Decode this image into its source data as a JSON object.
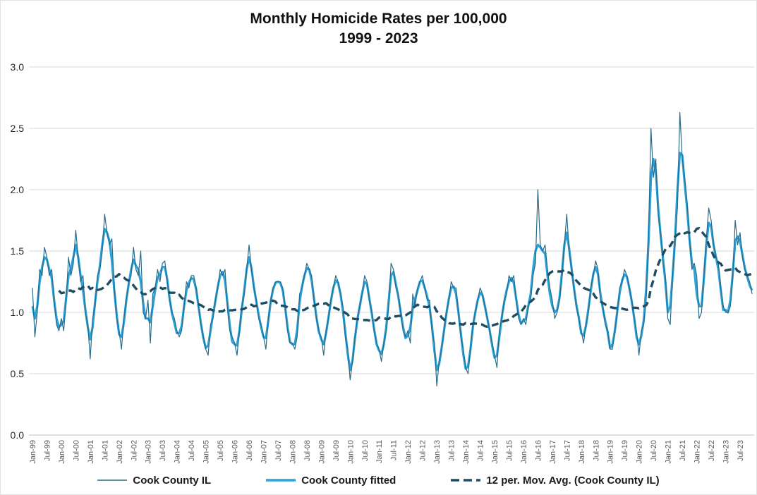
{
  "chart": {
    "title_line1": "Monthly Homicide Rates per 100,000",
    "title_line2": "1999 - 2023"
  },
  "colors": {
    "raw_line": "#2a6a88",
    "fitted_line": "#29a3dc",
    "moving_avg_line": "#1e4d61",
    "gridline": "#d9d9d9",
    "axis_line": "#bfbfbf",
    "y_tick_label": "#262626",
    "x_tick_label": "#595959",
    "title_text": "#111111"
  },
  "chart_data": {
    "type": "line",
    "title": "Monthly Homicide Rates per 100,000",
    "subtitle": "1999 - 2023",
    "xlabel": "",
    "ylabel": "",
    "ylim": [
      0.0,
      3.0
    ],
    "ytick_labels": [
      "0.0",
      "0.5",
      "1.0",
      "1.5",
      "2.0",
      "2.5",
      "3.0"
    ],
    "grid": "horizontal",
    "legend_position": "bottom",
    "x_unit": "month",
    "x_range": "Jan-1999 to Dec-2023",
    "months_total": 300,
    "x_tick_every_months": 6,
    "x_tick_labels": [
      "Jan-99",
      "Jul-99",
      "Jan-00",
      "Jul-00",
      "Jan-01",
      "Jul-01",
      "Jan-02",
      "Jul-02",
      "Jan-03",
      "Jul-03",
      "Jan-04",
      "Jul-04",
      "Jan-05",
      "Jul-05",
      "Jan-06",
      "Jul-06",
      "Jan-07",
      "Jul-07",
      "Jan-08",
      "Jul-08",
      "Jan-09",
      "Jul-09",
      "Jan-10",
      "Jul-10",
      "Jan-11",
      "Jul-11",
      "Jan-12",
      "Jul-12",
      "Jan-13",
      "Jul-13",
      "Jan-14",
      "Jul-14",
      "Jan-15",
      "Jul-15",
      "Jan-16",
      "Jul-16",
      "Jan-17",
      "Jul-17",
      "Jan-18",
      "Jul-18",
      "Jan-19",
      "Jul-19",
      "Jan-20",
      "Jul-20",
      "Jan-21",
      "Jul-21",
      "Jan-22",
      "Jul-22",
      "Jan-23",
      "Jul-23"
    ],
    "series": [
      {
        "name": "Cook County IL",
        "style": "thin-solid",
        "width": 1.2,
        "values": [
          1.2,
          0.8,
          1.0,
          1.35,
          1.3,
          1.53,
          1.45,
          1.3,
          1.35,
          1.1,
          0.9,
          0.85,
          0.95,
          0.85,
          1.1,
          1.45,
          1.3,
          1.4,
          1.67,
          1.45,
          1.25,
          1.3,
          1.0,
          0.9,
          0.62,
          0.95,
          1.05,
          1.3,
          1.35,
          1.5,
          1.8,
          1.65,
          1.55,
          1.6,
          1.2,
          0.95,
          0.85,
          0.7,
          0.95,
          1.1,
          1.25,
          1.3,
          1.53,
          1.35,
          1.3,
          1.5,
          1.0,
          0.95,
          1.1,
          0.75,
          1.15,
          1.2,
          1.35,
          1.25,
          1.4,
          1.42,
          1.25,
          1.1,
          1.0,
          0.95,
          0.85,
          0.8,
          0.85,
          1.05,
          1.25,
          1.2,
          1.3,
          1.3,
          1.2,
          1.05,
          0.9,
          0.8,
          0.7,
          0.65,
          0.9,
          0.95,
          1.1,
          1.2,
          1.35,
          1.3,
          1.35,
          1.05,
          0.85,
          0.8,
          0.75,
          0.65,
          0.85,
          1.05,
          1.15,
          1.35,
          1.55,
          1.35,
          1.2,
          1.1,
          0.95,
          0.9,
          0.8,
          0.7,
          0.95,
          1.1,
          1.2,
          1.25,
          1.25,
          1.25,
          1.2,
          1.05,
          0.85,
          0.75,
          0.75,
          0.7,
          0.8,
          1.15,
          1.2,
          1.3,
          1.4,
          1.35,
          1.3,
          1.1,
          0.95,
          0.85,
          0.8,
          0.65,
          0.85,
          0.95,
          1.1,
          1.2,
          1.3,
          1.25,
          1.15,
          1.05,
          0.8,
          0.7,
          0.45,
          0.6,
          0.8,
          0.95,
          1.05,
          1.15,
          1.3,
          1.25,
          1.1,
          1.0,
          0.85,
          0.75,
          0.7,
          0.6,
          0.75,
          0.85,
          1.05,
          1.4,
          1.35,
          1.2,
          1.15,
          1.0,
          0.85,
          0.8,
          0.85,
          0.75,
          1.15,
          1.05,
          1.2,
          1.25,
          1.3,
          1.2,
          1.1,
          1.1,
          0.85,
          0.75,
          0.4,
          0.6,
          0.7,
          0.85,
          1.0,
          1.1,
          1.25,
          1.2,
          1.2,
          1.0,
          0.8,
          0.7,
          0.55,
          0.5,
          0.7,
          0.9,
          1.0,
          1.1,
          1.2,
          1.15,
          1.05,
          0.95,
          0.85,
          0.75,
          0.65,
          0.55,
          0.85,
          0.95,
          1.1,
          1.15,
          1.3,
          1.25,
          1.3,
          1.1,
          0.95,
          0.9,
          0.95,
          0.9,
          1.05,
          1.1,
          1.3,
          1.4,
          2.0,
          1.55,
          1.5,
          1.55,
          1.35,
          1.2,
          1.1,
          0.95,
          1.0,
          1.1,
          1.3,
          1.55,
          1.8,
          1.5,
          1.35,
          1.2,
          1.05,
          0.95,
          0.85,
          0.75,
          0.9,
          1.0,
          1.2,
          1.3,
          1.42,
          1.35,
          1.1,
          1.05,
          0.9,
          0.85,
          0.7,
          0.7,
          0.85,
          1.0,
          1.2,
          1.25,
          1.35,
          1.3,
          1.2,
          1.1,
          0.95,
          0.85,
          0.65,
          0.85,
          0.9,
          1.1,
          1.65,
          2.5,
          2.1,
          2.25,
          1.8,
          1.65,
          1.4,
          1.3,
          0.95,
          0.9,
          1.3,
          1.6,
          1.85,
          2.63,
          2.25,
          2.1,
          1.9,
          1.6,
          1.35,
          1.4,
          1.3,
          0.95,
          1.0,
          1.3,
          1.6,
          1.85,
          1.75,
          1.55,
          1.45,
          1.4,
          1.2,
          1.05,
          1.0,
          1.0,
          1.05,
          1.3,
          1.75,
          1.55,
          1.65,
          1.45,
          1.35,
          1.3,
          1.25,
          1.15
        ]
      },
      {
        "name": "Cook County fitted",
        "style": "thick-solid",
        "width": 3.2,
        "values": [
          1.05,
          0.95,
          1.05,
          1.25,
          1.37,
          1.45,
          1.43,
          1.35,
          1.28,
          1.1,
          0.95,
          0.88,
          0.9,
          0.93,
          1.12,
          1.3,
          1.36,
          1.45,
          1.55,
          1.45,
          1.3,
          1.18,
          1.02,
          0.88,
          0.78,
          0.88,
          1.08,
          1.25,
          1.38,
          1.55,
          1.68,
          1.65,
          1.58,
          1.42,
          1.18,
          0.98,
          0.82,
          0.8,
          0.92,
          1.1,
          1.23,
          1.35,
          1.43,
          1.38,
          1.35,
          1.25,
          1.08,
          0.95,
          0.95,
          0.92,
          1.05,
          1.18,
          1.28,
          1.31,
          1.37,
          1.37,
          1.27,
          1.11,
          0.99,
          0.91,
          0.83,
          0.83,
          0.89,
          1.05,
          1.18,
          1.24,
          1.28,
          1.27,
          1.19,
          1.05,
          0.91,
          0.79,
          0.71,
          0.73,
          0.85,
          0.98,
          1.09,
          1.21,
          1.3,
          1.33,
          1.26,
          1.08,
          0.89,
          0.76,
          0.74,
          0.73,
          0.85,
          1.03,
          1.18,
          1.35,
          1.45,
          1.36,
          1.21,
          1.09,
          0.98,
          0.88,
          0.8,
          0.79,
          0.93,
          1.09,
          1.19,
          1.24,
          1.25,
          1.24,
          1.18,
          1.04,
          0.88,
          0.76,
          0.74,
          0.74,
          0.86,
          1.08,
          1.21,
          1.3,
          1.36,
          1.35,
          1.26,
          1.11,
          0.96,
          0.84,
          0.78,
          0.74,
          0.83,
          0.96,
          1.09,
          1.2,
          1.26,
          1.24,
          1.15,
          1.01,
          0.84,
          0.66,
          0.53,
          0.61,
          0.79,
          0.94,
          1.05,
          1.16,
          1.25,
          1.23,
          1.11,
          0.99,
          0.86,
          0.74,
          0.69,
          0.66,
          0.74,
          0.88,
          1.09,
          1.3,
          1.33,
          1.23,
          1.13,
          1.0,
          0.88,
          0.79,
          0.81,
          0.88,
          1.03,
          1.11,
          1.18,
          1.25,
          1.26,
          1.2,
          1.13,
          1.04,
          0.89,
          0.69,
          0.53,
          0.58,
          0.71,
          0.85,
          0.99,
          1.11,
          1.2,
          1.21,
          1.15,
          1.0,
          0.83,
          0.66,
          0.54,
          0.56,
          0.7,
          0.88,
          1.0,
          1.1,
          1.16,
          1.14,
          1.05,
          0.95,
          0.85,
          0.73,
          0.63,
          0.65,
          0.8,
          0.96,
          1.08,
          1.18,
          1.25,
          1.28,
          1.24,
          1.11,
          0.98,
          0.91,
          0.93,
          0.95,
          1.05,
          1.15,
          1.35,
          1.5,
          1.55,
          1.53,
          1.5,
          1.48,
          1.3,
          1.15,
          1.05,
          1.0,
          1.02,
          1.12,
          1.32,
          1.55,
          1.65,
          1.52,
          1.36,
          1.2,
          1.06,
          0.96,
          0.83,
          0.81,
          0.89,
          1.03,
          1.18,
          1.31,
          1.37,
          1.31,
          1.15,
          1.03,
          0.93,
          0.84,
          0.71,
          0.74,
          0.85,
          1.01,
          1.16,
          1.26,
          1.31,
          1.29,
          1.2,
          1.09,
          0.96,
          0.8,
          0.74,
          0.81,
          0.94,
          1.19,
          1.58,
          2.1,
          2.25,
          2.15,
          1.85,
          1.63,
          1.44,
          1.24,
          1.0,
          1.05,
          1.3,
          1.6,
          2.0,
          2.3,
          2.28,
          2.05,
          1.85,
          1.6,
          1.4,
          1.35,
          1.15,
          1.05,
          1.05,
          1.28,
          1.55,
          1.73,
          1.7,
          1.55,
          1.45,
          1.35,
          1.18,
          1.02,
          1.02,
          1.0,
          1.1,
          1.32,
          1.58,
          1.62,
          1.58,
          1.47,
          1.36,
          1.29,
          1.22,
          1.18
        ]
      },
      {
        "name": "12 per. Mov. Avg. (Cook County IL)",
        "style": "dashed",
        "width": 3.4,
        "dash": [
          10,
          6
        ],
        "derived_from": "Cook County IL",
        "window": 12,
        "values": null
      }
    ]
  }
}
